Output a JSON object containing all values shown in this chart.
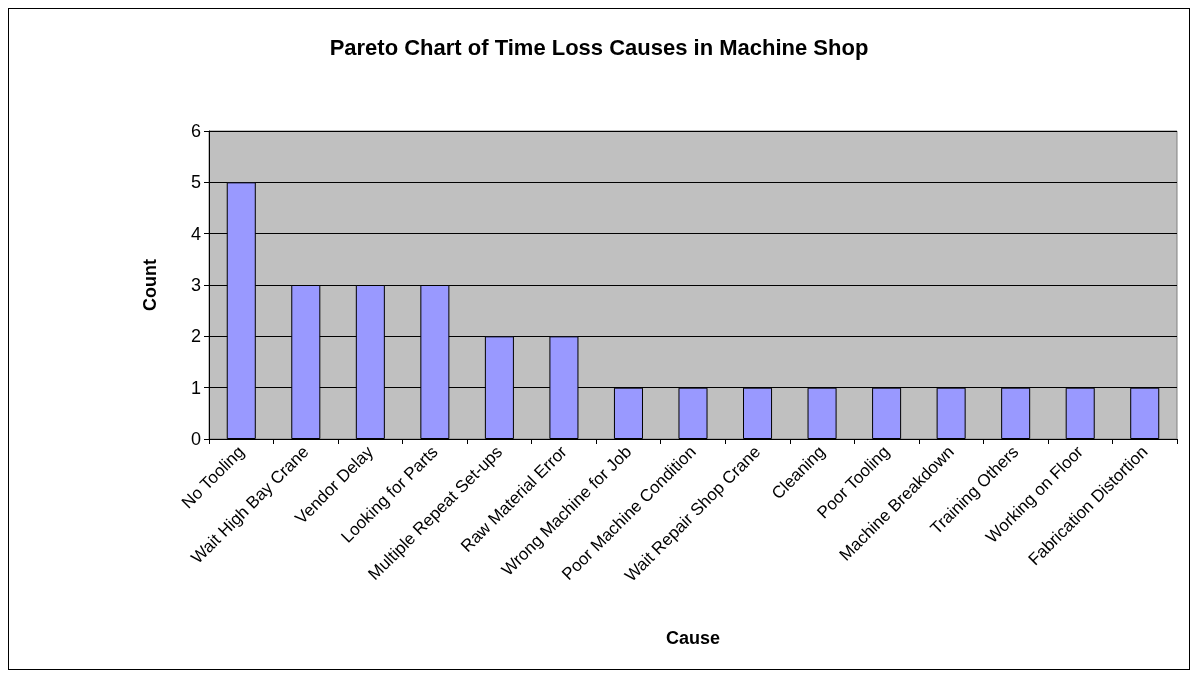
{
  "chart_data": {
    "type": "bar",
    "title": "Pareto Chart of Time Loss Causes in Machine Shop",
    "xlabel": "Cause",
    "ylabel": "Count",
    "categories": [
      "No Tooling",
      "Wait High Bay Crane",
      "Vendor Delay",
      "Looking for Parts",
      "Multiple Repeat Set-ups",
      "Raw Material Error",
      "Wrong Machine for Job",
      "Poor Machine Condition",
      "Wait Repair Shop Crane",
      "Cleaning",
      "Poor Tooling",
      "Machine Breakdown",
      "Training Others",
      "Working on Floor",
      "Fabrication Distortion"
    ],
    "values": [
      5,
      3,
      3,
      3,
      2,
      2,
      1,
      1,
      1,
      1,
      1,
      1,
      1,
      1,
      1
    ],
    "color": "#9999ff",
    "ylim": [
      0,
      6
    ],
    "yticks": [
      0,
      1,
      2,
      3,
      4,
      5,
      6
    ],
    "grid": "y"
  }
}
